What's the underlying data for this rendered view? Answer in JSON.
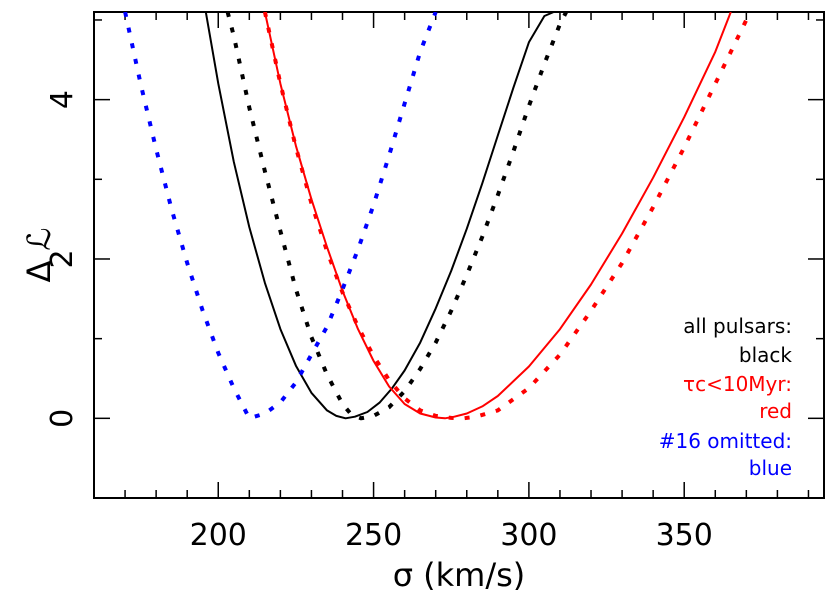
{
  "chart_data": {
    "type": "line",
    "xlabel": "σ (km/s)",
    "ylabel": "Δ ℒ",
    "xlim": [
      160,
      395
    ],
    "ylim": [
      -1,
      5.1
    ],
    "x_ticks": [
      200,
      250,
      300,
      350
    ],
    "y_ticks": [
      0,
      2,
      4
    ],
    "x_minor_step": 10,
    "y_minor_step": 1,
    "grid": false,
    "legend_position": "bottom-right",
    "series": [
      {
        "color": "#000000",
        "style": "solid",
        "x": [
          196,
          200,
          205,
          210,
          215,
          220,
          225,
          230,
          235,
          238,
          241,
          244,
          248,
          252,
          256,
          260,
          265,
          270,
          275,
          280,
          285,
          290,
          295,
          300,
          305,
          308
        ],
        "y": [
          5.1,
          4.2,
          3.22,
          2.4,
          1.7,
          1.12,
          0.66,
          0.32,
          0.1,
          0.03,
          0.0,
          0.02,
          0.08,
          0.2,
          0.38,
          0.6,
          0.95,
          1.38,
          1.85,
          2.38,
          2.95,
          3.55,
          4.15,
          4.72,
          5.05,
          5.1
        ]
      },
      {
        "color": "#000000",
        "style": "dotted",
        "x": [
          203,
          205,
          210,
          215,
          220,
          225,
          230,
          235,
          240,
          243,
          246,
          250,
          255,
          260,
          265,
          270,
          275,
          280,
          285,
          290,
          295,
          300,
          305,
          310,
          312
        ],
        "y": [
          5.1,
          4.8,
          3.9,
          3.1,
          2.35,
          1.62,
          1.02,
          0.55,
          0.18,
          0.04,
          0.0,
          0.03,
          0.14,
          0.34,
          0.62,
          0.95,
          1.35,
          1.8,
          2.28,
          2.8,
          3.35,
          3.92,
          4.45,
          4.95,
          5.1
        ]
      },
      {
        "color": "#ff0000",
        "style": "solid",
        "x": [
          215,
          220,
          225,
          230,
          235,
          240,
          245,
          250,
          255,
          260,
          265,
          270,
          273,
          276,
          280,
          285,
          290,
          300,
          310,
          320,
          330,
          340,
          350,
          360,
          365
        ],
        "y": [
          5.1,
          4.2,
          3.42,
          2.75,
          2.15,
          1.6,
          1.12,
          0.72,
          0.4,
          0.18,
          0.06,
          0.01,
          0.0,
          0.02,
          0.06,
          0.15,
          0.28,
          0.65,
          1.12,
          1.68,
          2.32,
          3.02,
          3.78,
          4.6,
          5.1
        ]
      },
      {
        "color": "#ff0000",
        "style": "dotted",
        "x": [
          215,
          220,
          225,
          230,
          235,
          240,
          245,
          250,
          255,
          260,
          265,
          270,
          275,
          279,
          283,
          290,
          300,
          310,
          320,
          330,
          340,
          350,
          360,
          370
        ],
        "y": [
          5.1,
          4.2,
          3.4,
          2.7,
          2.1,
          1.58,
          1.15,
          0.78,
          0.48,
          0.25,
          0.1,
          0.03,
          0.005,
          0.0,
          0.02,
          0.1,
          0.38,
          0.8,
          1.35,
          1.95,
          2.65,
          3.4,
          4.2,
          5.0
        ]
      },
      {
        "color": "#0000ff",
        "style": "dotted",
        "x": [
          170,
          175,
          180,
          185,
          190,
          195,
          200,
          205,
          210,
          215,
          220,
          225,
          230,
          235,
          240,
          245,
          250,
          255,
          260,
          265,
          270
        ],
        "y": [
          5.1,
          4.2,
          3.38,
          2.62,
          1.95,
          1.35,
          0.82,
          0.38,
          0.0,
          0.06,
          0.2,
          0.45,
          0.8,
          1.15,
          1.62,
          2.12,
          2.68,
          3.3,
          3.95,
          4.6,
          5.1
        ]
      }
    ]
  },
  "legend": [
    {
      "text": "all pulsars:",
      "color": "#000000"
    },
    {
      "text": "black",
      "color": "#000000"
    },
    {
      "text": "τc<10Myr:",
      "color": "#ff0000"
    },
    {
      "text": "red",
      "color": "#ff0000"
    },
    {
      "text": "#16 omitted:",
      "color": "#0000ff"
    },
    {
      "text": "blue",
      "color": "#0000ff"
    }
  ]
}
